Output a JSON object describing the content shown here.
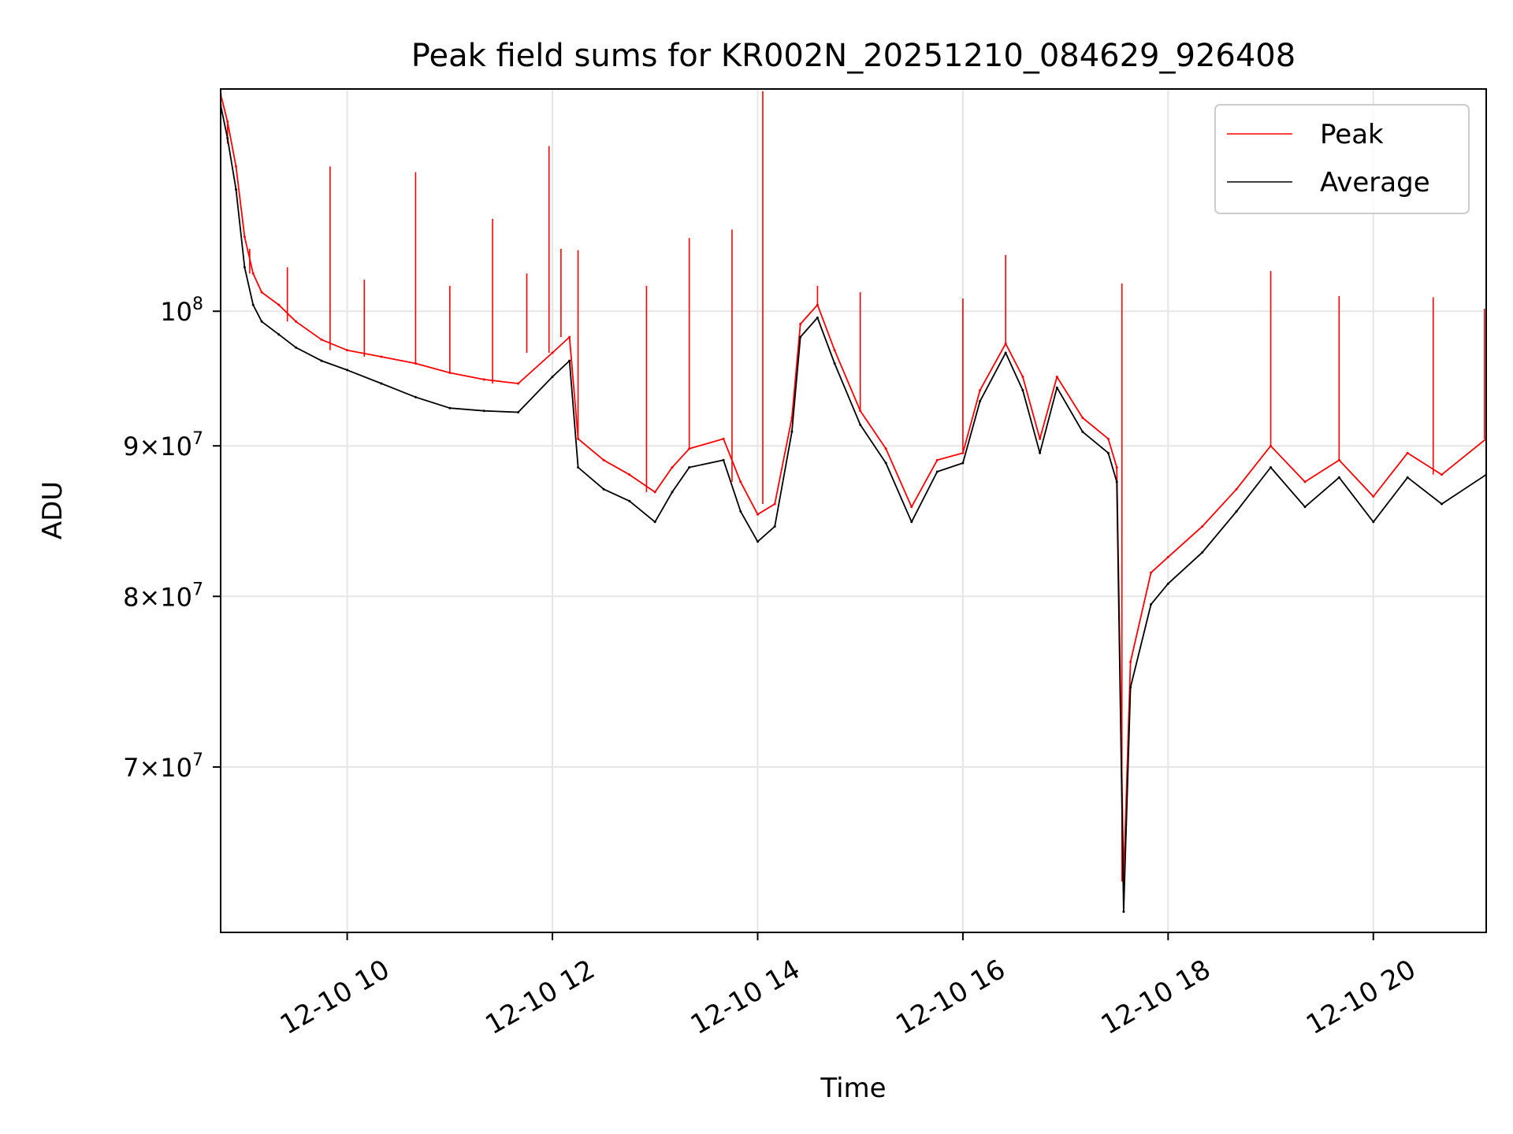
{
  "chart_data": {
    "type": "line",
    "title": "Peak field sums for KR002N_20251210_084629_926408",
    "xlabel": "Time",
    "ylabel": "ADU",
    "y_scale": "log",
    "grid": true,
    "legend_position": "top-right",
    "x_range": [
      "2025-12-10 08:46",
      "2025-12-10 21:06"
    ],
    "ylim": [
      61500000,
      119000000
    ],
    "x_ticks": [
      "2025-12-10 10:00",
      "2025-12-10 12:00",
      "2025-12-10 14:00",
      "2025-12-10 16:00",
      "2025-12-10 18:00",
      "2025-12-10 20:00"
    ],
    "x_tick_labels": [
      "12-10 10",
      "12-10 12",
      "12-10 14",
      "12-10 16",
      "12-10 18",
      "12-10 20"
    ],
    "y_ticks": [
      {
        "value": 70000000,
        "mantissa": "7",
        "exp": "7"
      },
      {
        "value": 80000000,
        "mantissa": "8",
        "exp": "7"
      },
      {
        "value": 90000000,
        "mantissa": "9",
        "exp": "7"
      },
      {
        "value": 100000000,
        "mantissa": "",
        "exp": "8"
      }
    ],
    "series": [
      {
        "name": "Peak",
        "color": "#ff0000",
        "points": [
          [
            "2025-12-10 08:46",
            118500000
          ],
          [
            "2025-12-10 08:50",
            116000000
          ],
          [
            "2025-12-10 08:55",
            112000000
          ],
          [
            "2025-12-10 09:00",
            106000000
          ],
          [
            "2025-12-10 09:05",
            103000000
          ],
          [
            "2025-12-10 09:10",
            101500000
          ],
          [
            "2025-12-10 09:20",
            100500000
          ],
          [
            "2025-12-10 09:30",
            99200000
          ],
          [
            "2025-12-10 09:45",
            97800000
          ],
          [
            "2025-12-10 10:00",
            97000000
          ],
          [
            "2025-12-10 10:20",
            96500000
          ],
          [
            "2025-12-10 10:40",
            96000000
          ],
          [
            "2025-12-10 11:00",
            95300000
          ],
          [
            "2025-12-10 11:20",
            94800000
          ],
          [
            "2025-12-10 11:40",
            94500000
          ],
          [
            "2025-12-10 12:00",
            96800000
          ],
          [
            "2025-12-10 12:10",
            98000000
          ],
          [
            "2025-12-10 12:15",
            90500000
          ],
          [
            "2025-12-10 12:30",
            89000000
          ],
          [
            "2025-12-10 12:45",
            88000000
          ],
          [
            "2025-12-10 13:00",
            86800000
          ],
          [
            "2025-12-10 13:10",
            88500000
          ],
          [
            "2025-12-10 13:20",
            89800000
          ],
          [
            "2025-12-10 13:40",
            90500000
          ],
          [
            "2025-12-10 13:50",
            87500000
          ],
          [
            "2025-12-10 14:00",
            85300000
          ],
          [
            "2025-12-10 14:10",
            86000000
          ],
          [
            "2025-12-10 14:20",
            92000000
          ],
          [
            "2025-12-10 14:25",
            99000000
          ],
          [
            "2025-12-10 14:35",
            100500000
          ],
          [
            "2025-12-10 14:45",
            97000000
          ],
          [
            "2025-12-10 15:00",
            92500000
          ],
          [
            "2025-12-10 15:15",
            89800000
          ],
          [
            "2025-12-10 15:30",
            85800000
          ],
          [
            "2025-12-10 15:45",
            89000000
          ],
          [
            "2025-12-10 16:00",
            89500000
          ],
          [
            "2025-12-10 16:10",
            94000000
          ],
          [
            "2025-12-10 16:25",
            97500000
          ],
          [
            "2025-12-10 16:35",
            95000000
          ],
          [
            "2025-12-10 16:45",
            90500000
          ],
          [
            "2025-12-10 16:55",
            95000000
          ],
          [
            "2025-12-10 17:10",
            92000000
          ],
          [
            "2025-12-10 17:25",
            90500000
          ],
          [
            "2025-12-10 17:30",
            88500000
          ],
          [
            "2025-12-10 17:34",
            64000000
          ],
          [
            "2025-12-10 17:38",
            76000000
          ],
          [
            "2025-12-10 17:50",
            81500000
          ],
          [
            "2025-12-10 18:00",
            82500000
          ],
          [
            "2025-12-10 18:20",
            84500000
          ],
          [
            "2025-12-10 18:40",
            87000000
          ],
          [
            "2025-12-10 19:00",
            90000000
          ],
          [
            "2025-12-10 19:20",
            87500000
          ],
          [
            "2025-12-10 19:40",
            89000000
          ],
          [
            "2025-12-10 20:00",
            86500000
          ],
          [
            "2025-12-10 20:20",
            89500000
          ],
          [
            "2025-12-10 20:40",
            88000000
          ],
          [
            "2025-12-10 21:06",
            90500000
          ]
        ],
        "spikes": [
          [
            "2025-12-10 08:50",
            114000000
          ],
          [
            "2025-12-10 09:03",
            105000000
          ],
          [
            "2025-12-10 09:25",
            103500000
          ],
          [
            "2025-12-10 09:50",
            112000000
          ],
          [
            "2025-12-10 10:10",
            102500000
          ],
          [
            "2025-12-10 10:40",
            111500000
          ],
          [
            "2025-12-10 11:00",
            102000000
          ],
          [
            "2025-12-10 11:25",
            107500000
          ],
          [
            "2025-12-10 11:45",
            103000000
          ],
          [
            "2025-12-10 11:58",
            113800000
          ],
          [
            "2025-12-10 12:05",
            105000000
          ],
          [
            "2025-12-10 12:15",
            104900000
          ],
          [
            "2025-12-10 12:55",
            102000000
          ],
          [
            "2025-12-10 13:20",
            105900000
          ],
          [
            "2025-12-10 13:45",
            106600000
          ],
          [
            "2025-12-10 14:03",
            118800000
          ],
          [
            "2025-12-10 14:35",
            102000000
          ],
          [
            "2025-12-10 15:00",
            101500000
          ],
          [
            "2025-12-10 16:00",
            101000000
          ],
          [
            "2025-12-10 16:25",
            104500000
          ],
          [
            "2025-12-10 17:33",
            102200000
          ],
          [
            "2025-12-10 19:00",
            103200000
          ],
          [
            "2025-12-10 19:40",
            101200000
          ],
          [
            "2025-12-10 20:35",
            101100000
          ],
          [
            "2025-12-10 21:05",
            100200000
          ]
        ]
      },
      {
        "name": "Average",
        "color": "#000000",
        "points": [
          [
            "2025-12-10 08:46",
            117500000
          ],
          [
            "2025-12-10 08:50",
            114500000
          ],
          [
            "2025-12-10 08:55",
            110000000
          ],
          [
            "2025-12-10 09:00",
            103500000
          ],
          [
            "2025-12-10 09:05",
            100500000
          ],
          [
            "2025-12-10 09:10",
            99200000
          ],
          [
            "2025-12-10 09:20",
            98200000
          ],
          [
            "2025-12-10 09:30",
            97200000
          ],
          [
            "2025-12-10 09:45",
            96200000
          ],
          [
            "2025-12-10 10:00",
            95500000
          ],
          [
            "2025-12-10 10:20",
            94500000
          ],
          [
            "2025-12-10 10:40",
            93500000
          ],
          [
            "2025-12-10 11:00",
            92700000
          ],
          [
            "2025-12-10 11:20",
            92500000
          ],
          [
            "2025-12-10 11:40",
            92400000
          ],
          [
            "2025-12-10 12:00",
            95000000
          ],
          [
            "2025-12-10 12:10",
            96200000
          ],
          [
            "2025-12-10 12:15",
            88500000
          ],
          [
            "2025-12-10 12:30",
            87000000
          ],
          [
            "2025-12-10 12:45",
            86200000
          ],
          [
            "2025-12-10 13:00",
            84800000
          ],
          [
            "2025-12-10 13:10",
            86800000
          ],
          [
            "2025-12-10 13:20",
            88500000
          ],
          [
            "2025-12-10 13:40",
            89000000
          ],
          [
            "2025-12-10 13:50",
            85500000
          ],
          [
            "2025-12-10 14:00",
            83500000
          ],
          [
            "2025-12-10 14:10",
            84500000
          ],
          [
            "2025-12-10 14:20",
            91000000
          ],
          [
            "2025-12-10 14:25",
            98000000
          ],
          [
            "2025-12-10 14:35",
            99500000
          ],
          [
            "2025-12-10 14:45",
            96000000
          ],
          [
            "2025-12-10 15:00",
            91500000
          ],
          [
            "2025-12-10 15:15",
            88800000
          ],
          [
            "2025-12-10 15:30",
            84800000
          ],
          [
            "2025-12-10 15:45",
            88200000
          ],
          [
            "2025-12-10 16:00",
            88800000
          ],
          [
            "2025-12-10 16:10",
            93200000
          ],
          [
            "2025-12-10 16:25",
            96800000
          ],
          [
            "2025-12-10 16:35",
            94000000
          ],
          [
            "2025-12-10 16:45",
            89500000
          ],
          [
            "2025-12-10 16:55",
            94200000
          ],
          [
            "2025-12-10 17:10",
            91000000
          ],
          [
            "2025-12-10 17:25",
            89500000
          ],
          [
            "2025-12-10 17:30",
            87500000
          ],
          [
            "2025-12-10 17:34",
            62500000
          ],
          [
            "2025-12-10 17:38",
            74500000
          ],
          [
            "2025-12-10 17:50",
            79500000
          ],
          [
            "2025-12-10 18:00",
            80800000
          ],
          [
            "2025-12-10 18:20",
            82800000
          ],
          [
            "2025-12-10 18:40",
            85500000
          ],
          [
            "2025-12-10 19:00",
            88500000
          ],
          [
            "2025-12-10 19:20",
            85800000
          ],
          [
            "2025-12-10 19:40",
            87800000
          ],
          [
            "2025-12-10 20:00",
            84800000
          ],
          [
            "2025-12-10 20:20",
            87800000
          ],
          [
            "2025-12-10 20:40",
            86000000
          ],
          [
            "2025-12-10 21:06",
            88000000
          ]
        ]
      }
    ]
  }
}
